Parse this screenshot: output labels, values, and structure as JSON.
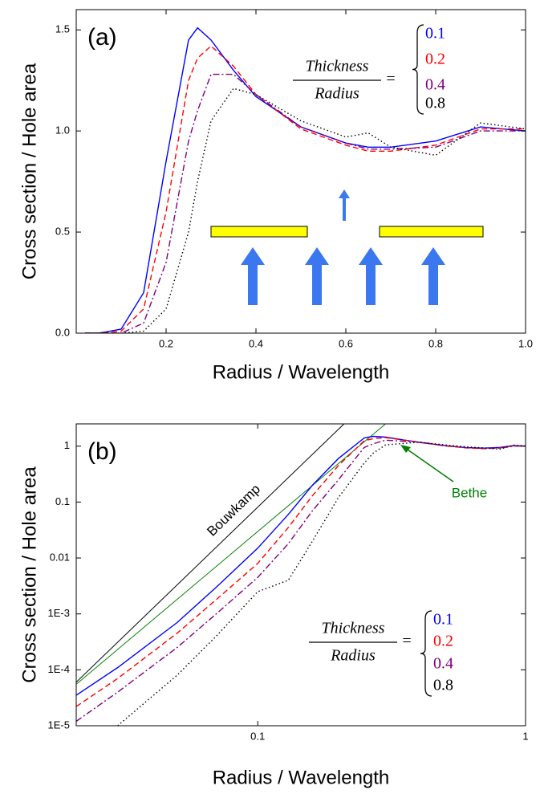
{
  "chart_data": [
    {
      "type": "line",
      "panel_label": "(a)",
      "xlabel": "Radius / Wavelength",
      "ylabel": "Cross section / Hole area",
      "xlim": [
        0,
        1
      ],
      "ylim": [
        0,
        1.6
      ],
      "xticks": [
        0.2,
        0.4,
        0.6,
        0.8,
        {
          "value": 1,
          "label": "1.0"
        }
      ],
      "yticks": [
        {
          "value": 0,
          "label": "0.0"
        },
        0.5,
        {
          "value": 1,
          "label": "1.0"
        },
        1.5
      ],
      "legend_title_top": "Thickness",
      "legend_title_bottom": "Radius",
      "legend_equals": "=",
      "x": [
        0.02,
        0.05,
        0.1,
        0.15,
        0.2,
        0.25,
        0.27,
        0.3,
        0.35,
        0.4,
        0.5,
        0.6,
        0.65,
        0.7,
        0.8,
        0.9,
        1.0
      ],
      "series": [
        {
          "name": "0.1",
          "color": "#0000ff",
          "dash": "solid",
          "values": [
            0,
            0,
            0.02,
            0.2,
            0.85,
            1.45,
            1.51,
            1.45,
            1.3,
            1.17,
            1.02,
            0.94,
            0.92,
            0.92,
            0.95,
            1.02,
            1.0
          ]
        },
        {
          "name": "0.2",
          "color": "#ff0000",
          "dash": "dashed",
          "values": [
            0,
            0,
            0.01,
            0.12,
            0.6,
            1.25,
            1.36,
            1.42,
            1.32,
            1.18,
            1.01,
            0.93,
            0.9,
            0.9,
            0.93,
            1.01,
            1.01
          ]
        },
        {
          "name": "0.4",
          "color": "#800080",
          "dash": "dashdot",
          "values": [
            0,
            0,
            0,
            0.05,
            0.35,
            0.95,
            1.1,
            1.28,
            1.28,
            1.18,
            1.02,
            0.94,
            0.91,
            0.91,
            0.92,
            1.0,
            1.0
          ]
        },
        {
          "name": "0.8",
          "color": "#000000",
          "dash": "dotted",
          "values": [
            0,
            0,
            0,
            0.01,
            0.12,
            0.5,
            0.75,
            1.05,
            1.21,
            1.18,
            1.05,
            0.97,
            0.99,
            0.92,
            0.88,
            1.04,
            1.01
          ]
        }
      ]
    },
    {
      "type": "line",
      "panel_label": "(b)",
      "log_x": true,
      "log_y": true,
      "xlabel": "Radius / Wavelength",
      "ylabel": "Cross section / Hole area",
      "xlim": [
        0.021,
        1
      ],
      "ylim": [
        1e-05,
        2.5
      ],
      "xticks": [
        0.1,
        1
      ],
      "yticks": [
        {
          "value": 1e-05,
          "label": "1E-5"
        },
        {
          "value": 0.0001,
          "label": "1E-4"
        },
        {
          "value": 0.001,
          "label": "1E-3"
        },
        0.01,
        0.1,
        1
      ],
      "legend_title_top": "Thickness",
      "legend_title_bottom": "Radius",
      "legend_equals": "=",
      "x": [
        0.021,
        0.03,
        0.05,
        0.07,
        0.1,
        0.13,
        0.16,
        0.2,
        0.25,
        0.27,
        0.3,
        0.4,
        0.5,
        0.6,
        0.7,
        0.8,
        0.9,
        1.0
      ],
      "series": [
        {
          "name": "0.1",
          "color": "#0000ff",
          "dash": "solid",
          "values": [
            3.5e-05,
            0.00011,
            0.0007,
            0.003,
            0.015,
            0.06,
            0.2,
            0.6,
            1.4,
            1.5,
            1.45,
            1.17,
            1.02,
            0.94,
            0.92,
            0.95,
            1.02,
            1.0
          ]
        },
        {
          "name": "0.2",
          "color": "#ff0000",
          "dash": "dashed",
          "values": [
            2.2e-05,
            7e-05,
            0.00045,
            0.0018,
            0.008,
            0.035,
            0.13,
            0.45,
            1.25,
            1.36,
            1.42,
            1.18,
            1.01,
            0.93,
            0.9,
            0.93,
            1.01,
            1.01
          ]
        },
        {
          "name": "0.4",
          "color": "#800080",
          "dash": "dashdot",
          "values": [
            1.2e-05,
            4e-05,
            0.00025,
            0.001,
            0.0045,
            0.018,
            0.07,
            0.25,
            0.95,
            1.1,
            1.28,
            1.18,
            1.02,
            0.94,
            0.91,
            0.92,
            1.0,
            1.0
          ]
        },
        {
          "name": "0.8",
          "color": "#000000",
          "dash": "dotted",
          "values": [
            null,
            1e-05,
            8e-05,
            0.0004,
            0.0025,
            0.004,
            0.02,
            0.12,
            0.5,
            0.75,
            1.05,
            1.18,
            1.05,
            0.97,
            0.93,
            0.88,
            1.04,
            1.01
          ]
        }
      ],
      "reference_lines": [
        {
          "name": "Bouwkamp",
          "color": "#000000",
          "x": [
            0.021,
            0.21
          ],
          "values": [
            6e-05,
            2.5
          ]
        },
        {
          "name": "Bethe",
          "color": "#008000",
          "x": [
            0.021,
            0.3
          ],
          "values": [
            5.5e-05,
            2.5
          ]
        }
      ]
    }
  ]
}
